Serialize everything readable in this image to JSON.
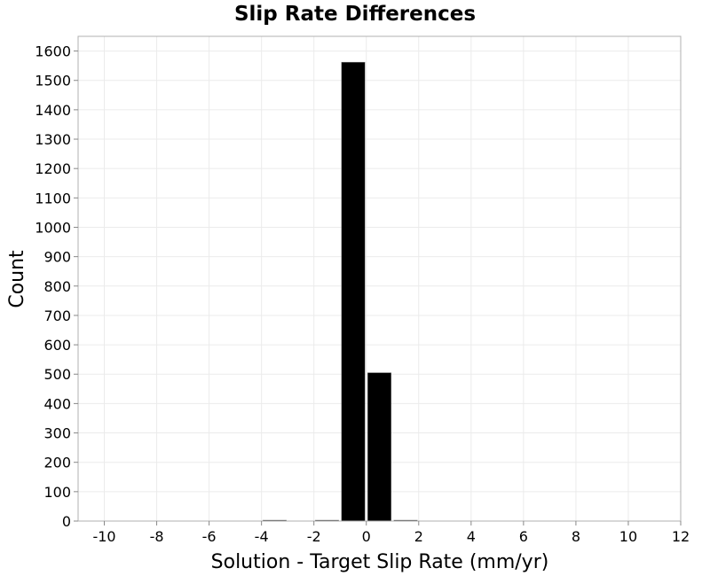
{
  "chart_data": {
    "type": "bar",
    "title": "Slip Rate Differences",
    "xlabel": "Solution - Target Slip Rate (mm/yr)",
    "ylabel": "Count",
    "xlim": [
      -11,
      12
    ],
    "ylim": [
      0,
      1650
    ],
    "xticks": [
      -10,
      -8,
      -6,
      -4,
      -2,
      0,
      2,
      4,
      6,
      8,
      10,
      12
    ],
    "yticks": [
      0,
      100,
      200,
      300,
      400,
      500,
      600,
      700,
      800,
      900,
      1000,
      1100,
      1200,
      1300,
      1400,
      1500,
      1600
    ],
    "xtick_labels": [
      "-10",
      "-8",
      "-6",
      "-4",
      "-2",
      "0",
      "2",
      "4",
      "6",
      "8",
      "10",
      "12"
    ],
    "ytick_labels": [
      "0",
      "100",
      "200",
      "300",
      "400",
      "500",
      "600",
      "700",
      "800",
      "900",
      "1000",
      "1100",
      "1200",
      "1300",
      "1400",
      "1500",
      "1600"
    ],
    "bin_width": 1,
    "bins": [
      {
        "center": -3.5,
        "count": 2
      },
      {
        "center": -1.5,
        "count": 2
      },
      {
        "center": -0.5,
        "count": 1562
      },
      {
        "center": 0.5,
        "count": 505
      },
      {
        "center": 1.5,
        "count": 2
      }
    ],
    "bar_color": "#000000",
    "grid": true,
    "grid_color": "#ebebeb",
    "frame_color": "#b0b0b0"
  }
}
